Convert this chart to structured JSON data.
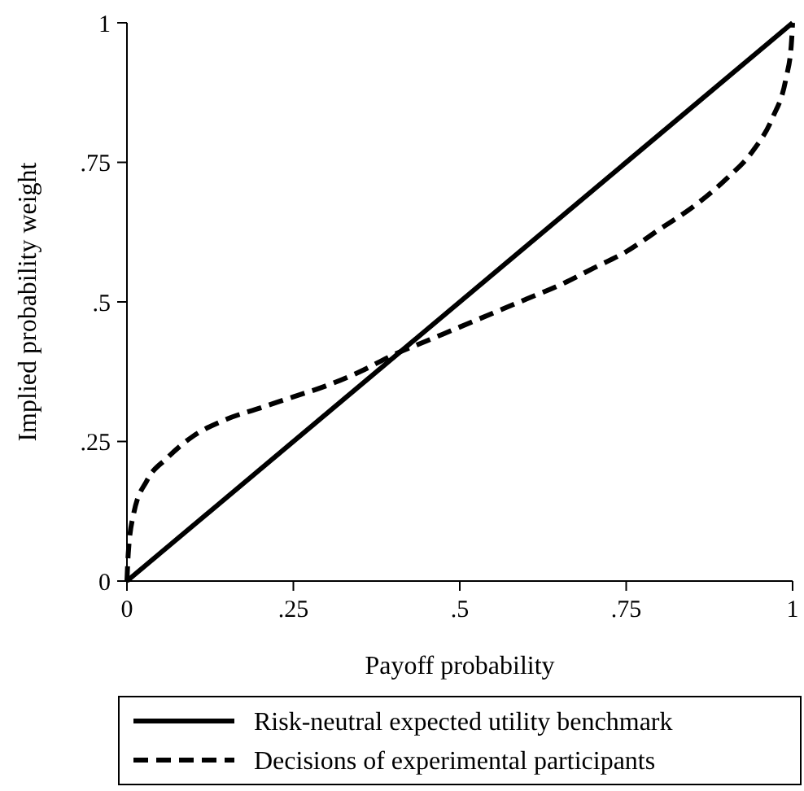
{
  "chart_data": {
    "type": "line",
    "xlabel": "Payoff probability",
    "ylabel": "Implied probability weight",
    "xlim": [
      0,
      1
    ],
    "ylim": [
      0,
      1
    ],
    "xticks": [
      0,
      {
        "value": 0.25,
        "label": ".25"
      },
      {
        "value": 0.5,
        "label": ".5"
      },
      {
        "value": 0.75,
        "label": ".75"
      },
      1
    ],
    "yticks": [
      0,
      {
        "value": 0.25,
        "label": ".25"
      },
      {
        "value": 0.5,
        "label": ".5"
      },
      {
        "value": 0.75,
        "label": ".75"
      },
      1
    ],
    "grid": false,
    "legend": "bottom",
    "marker": "none",
    "series": [
      {
        "name": "Risk-neutral expected utility benchmark",
        "color": "#000000",
        "line_style": "solid",
        "x": [
          0,
          1
        ],
        "values": [
          0,
          1
        ]
      },
      {
        "name": "Decisions of experimental participants",
        "color": "#000000",
        "line_style": "dashed",
        "x": [
          0,
          0.002,
          0.01,
          0.03,
          0.06,
          0.1,
          0.15,
          0.2,
          0.25,
          0.3,
          0.35,
          0.4,
          0.45,
          0.5,
          0.55,
          0.6,
          0.65,
          0.7,
          0.75,
          0.8,
          0.85,
          0.9,
          0.94,
          0.97,
          0.99,
          0.998,
          1
        ],
        "values": [
          0,
          0.05,
          0.12,
          0.18,
          0.22,
          0.26,
          0.29,
          0.31,
          0.33,
          0.35,
          0.375,
          0.405,
          0.43,
          0.455,
          0.48,
          0.505,
          0.53,
          0.56,
          0.59,
          0.63,
          0.67,
          0.72,
          0.77,
          0.83,
          0.9,
          0.96,
          1
        ]
      }
    ]
  }
}
